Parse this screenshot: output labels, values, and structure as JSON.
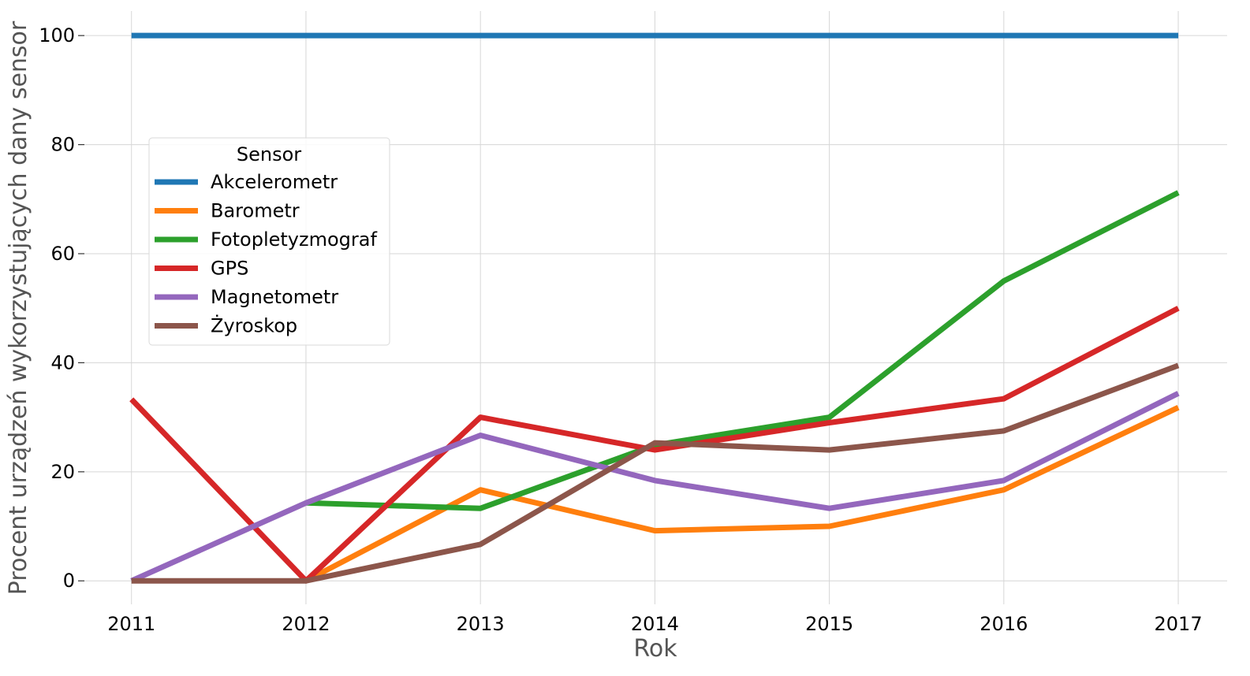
{
  "chart_data": {
    "type": "line",
    "title": "",
    "xlabel": "Rok",
    "ylabel": "Procent urządzeń wykorzystujących dany sensor",
    "x": [
      2011,
      2012,
      2013,
      2014,
      2015,
      2016,
      2017
    ],
    "xlim": [
      2010.73,
      2017.28
    ],
    "ylim": [
      -4.3,
      104.5
    ],
    "yticks": [
      0,
      20,
      40,
      60,
      80,
      100
    ],
    "grid": true,
    "legend": {
      "title": "Sensor",
      "placement": "center-left"
    },
    "series": [
      {
        "name": "Akcelerometr",
        "color": "#1f77b4",
        "values": [
          100,
          100,
          100,
          100,
          100,
          100,
          100
        ]
      },
      {
        "name": "Barometr",
        "color": "#ff7f0e",
        "values": [
          null,
          0,
          16.7,
          9.2,
          10.0,
          16.7,
          31.8
        ]
      },
      {
        "name": "Fotopletyzmograf",
        "color": "#2ca02c",
        "values": [
          null,
          14.3,
          13.3,
          24.9,
          30.0,
          55.0,
          71.2
        ]
      },
      {
        "name": "GPS",
        "color": "#d62728",
        "values": [
          33.3,
          0,
          30.0,
          24.0,
          29.0,
          33.4,
          50.0
        ]
      },
      {
        "name": "Magnetometr",
        "color": "#9467bd",
        "values": [
          0,
          14.3,
          26.7,
          18.4,
          13.3,
          18.4,
          34.4
        ]
      },
      {
        "name": "Żyroskop",
        "color": "#8c564b",
        "values": [
          0,
          0,
          6.7,
          25.3,
          24.0,
          27.5,
          39.5
        ]
      }
    ]
  }
}
